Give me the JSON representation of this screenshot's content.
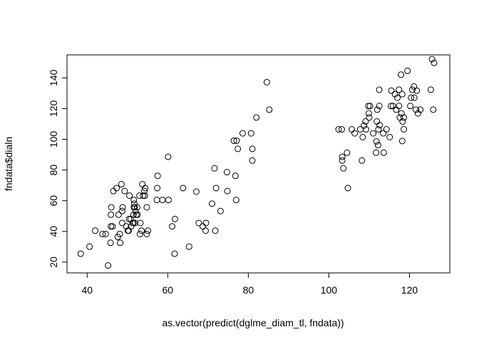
{
  "chart_data": {
    "type": "scatter",
    "title": "",
    "xlabel": "as.vector(predict(dglme_diam_tl, fndata))",
    "ylabel": "fndata$dialn",
    "xlim": [
      35,
      130
    ],
    "ylim": [
      13,
      155
    ],
    "xticks": [
      40,
      60,
      80,
      100,
      120
    ],
    "yticks": [
      20,
      40,
      60,
      80,
      100,
      120,
      140
    ],
    "grid": false,
    "point_color": "#000000",
    "points": [
      [
        38.4,
        25.5
      ],
      [
        40.6,
        30.1
      ],
      [
        42,
        40.5
      ],
      [
        43.8,
        38.3
      ],
      [
        44.6,
        38.3
      ],
      [
        45.2,
        17.8
      ],
      [
        45.8,
        32.6
      ],
      [
        45.9,
        43.3
      ],
      [
        45.9,
        50.9
      ],
      [
        46,
        55.7
      ],
      [
        46.3,
        43.3
      ],
      [
        46.5,
        66.3
      ],
      [
        47.3,
        68.2
      ],
      [
        47.6,
        36.4
      ],
      [
        47.8,
        50.9
      ],
      [
        48.1,
        38.3
      ],
      [
        48.2,
        32.6
      ],
      [
        48.5,
        70.7
      ],
      [
        48.7,
        53.3
      ],
      [
        48.7,
        45.5
      ],
      [
        48.8,
        55.7
      ],
      [
        49.3,
        66.3
      ],
      [
        49.7,
        43.3
      ],
      [
        50.1,
        40.5
      ],
      [
        50.3,
        40.5
      ],
      [
        50.4,
        48.1
      ],
      [
        50.5,
        63.3
      ],
      [
        50.8,
        48.1
      ],
      [
        50.9,
        43.3
      ],
      [
        51.3,
        45.5
      ],
      [
        51.5,
        45.5
      ],
      [
        51.5,
        50.9
      ],
      [
        51.6,
        60.5
      ],
      [
        51.6,
        55.7
      ],
      [
        51.7,
        58.1
      ],
      [
        51.8,
        55.7
      ],
      [
        51.9,
        45.5
      ],
      [
        52,
        53.3
      ],
      [
        52.2,
        50.9
      ],
      [
        52.4,
        55.7
      ],
      [
        52.5,
        50.9
      ],
      [
        53,
        63.3
      ],
      [
        53.1,
        38.3
      ],
      [
        53.2,
        45.5
      ],
      [
        53.5,
        40.5
      ],
      [
        53.7,
        70.7
      ],
      [
        53.9,
        63.3
      ],
      [
        54.2,
        66.3
      ],
      [
        54.3,
        63.3
      ],
      [
        54.4,
        68.2
      ],
      [
        54.8,
        55.7
      ],
      [
        54.8,
        38.3
      ],
      [
        55.1,
        40.5
      ],
      [
        57.3,
        60.5
      ],
      [
        57.4,
        68.2
      ],
      [
        57.5,
        76.2
      ],
      [
        58.7,
        60.5
      ],
      [
        60.1,
        88.6
      ],
      [
        60.2,
        60.5
      ],
      [
        61.1,
        43.3
      ],
      [
        61.7,
        25.5
      ],
      [
        61.8,
        48.1
      ],
      [
        63.8,
        68.2
      ],
      [
        65.3,
        30.1
      ],
      [
        67.1,
        65.9
      ],
      [
        67.7,
        45.5
      ],
      [
        68.7,
        43.3
      ],
      [
        69.4,
        40.5
      ],
      [
        69.5,
        45.5
      ],
      [
        71,
        58.1
      ],
      [
        71.6,
        81.1
      ],
      [
        71.8,
        40.5
      ],
      [
        72,
        68.2
      ],
      [
        73.1,
        53.3
      ],
      [
        74.7,
        78.6
      ],
      [
        74.8,
        66.3
      ],
      [
        76.4,
        99.1
      ],
      [
        76.8,
        76.2
      ],
      [
        77,
        60.5
      ],
      [
        77.1,
        99.1
      ],
      [
        77.4,
        93.8
      ],
      [
        78.6,
        103.9
      ],
      [
        80.7,
        103.9
      ],
      [
        81,
        86.2
      ],
      [
        81,
        93.8
      ],
      [
        82,
        114.2
      ],
      [
        84.6,
        137.2
      ],
      [
        85.2,
        119.3
      ],
      [
        102.4,
        106.5
      ],
      [
        103.2,
        106.5
      ],
      [
        103.3,
        88.6
      ],
      [
        103.3,
        86.2
      ],
      [
        103.6,
        81.1
      ],
      [
        104.5,
        91.3
      ],
      [
        104.7,
        68.2
      ],
      [
        105.7,
        106.5
      ],
      [
        106.4,
        103.9
      ],
      [
        107.8,
        106.5
      ],
      [
        108.2,
        86.2
      ],
      [
        108.4,
        101.4
      ],
      [
        108.7,
        108.9
      ],
      [
        109.1,
        111.6
      ],
      [
        109.2,
        106.5
      ],
      [
        109.8,
        121.7
      ],
      [
        109.9,
        116.9
      ],
      [
        110,
        114.2
      ],
      [
        110.2,
        121.7
      ],
      [
        111,
        103.9
      ],
      [
        111.7,
        91.3
      ],
      [
        111.8,
        98.6
      ],
      [
        111.9,
        111.6
      ],
      [
        112,
        119.3
      ],
      [
        112.2,
        96.2
      ],
      [
        112.3,
        106.5
      ],
      [
        112.5,
        132.3
      ],
      [
        112.5,
        121.7
      ],
      [
        112.6,
        109.2
      ],
      [
        113.5,
        103.9
      ],
      [
        113.6,
        91.3
      ],
      [
        114.3,
        106.5
      ],
      [
        115.1,
        101.4
      ],
      [
        115.4,
        121.7
      ],
      [
        115.5,
        131.7
      ],
      [
        115.9,
        121.7
      ],
      [
        116.4,
        129.4
      ],
      [
        116.7,
        119.3
      ],
      [
        117,
        127.1
      ],
      [
        117.4,
        132.3
      ],
      [
        117.4,
        121.7
      ],
      [
        117.6,
        114.2
      ],
      [
        117.9,
        142.1
      ],
      [
        118,
        116.9
      ],
      [
        118.2,
        129.4
      ],
      [
        118.2,
        98.9
      ],
      [
        118.3,
        111.6
      ],
      [
        118.6,
        114.2
      ],
      [
        118.6,
        106.5
      ],
      [
        119.5,
        144.6
      ],
      [
        120.2,
        121.7
      ],
      [
        120.4,
        127.1
      ],
      [
        120.7,
        132.3
      ],
      [
        121.1,
        134.4
      ],
      [
        121.2,
        127.1
      ],
      [
        121.6,
        119.3
      ],
      [
        121.8,
        131.7
      ],
      [
        122.1,
        116.9
      ],
      [
        122.7,
        119.3
      ],
      [
        125.3,
        132.3
      ],
      [
        125.6,
        152.2
      ],
      [
        125.9,
        119.3
      ],
      [
        126.1,
        149.8
      ]
    ]
  }
}
